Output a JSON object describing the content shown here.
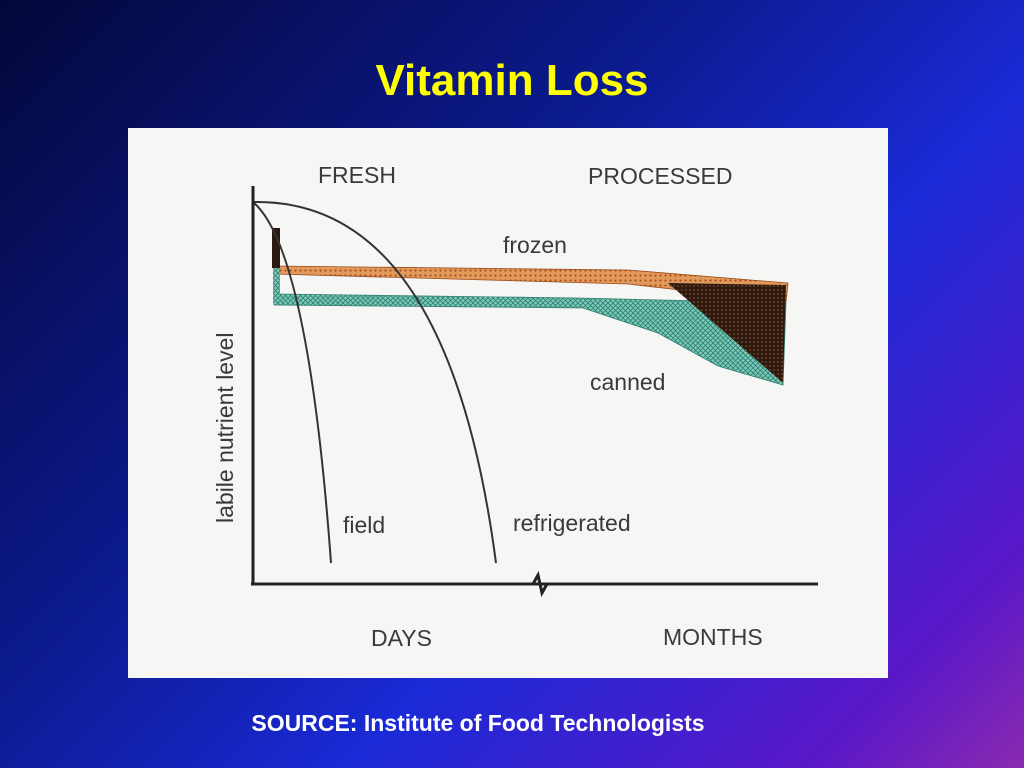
{
  "slide": {
    "title": "Vitamin Loss",
    "source": "SOURCE: Institute of Food Technologists"
  },
  "chart_data": {
    "type": "line",
    "title": "",
    "ylabel": "labile nutrient level",
    "x_segments": [
      "DAYS",
      "MONTHS"
    ],
    "regions": [
      "FRESH",
      "PROCESSED"
    ],
    "axis_break": true,
    "grid": false,
    "series": [
      {
        "name": "field",
        "kind": "curve",
        "color": "#333333"
      },
      {
        "name": "refrigerated",
        "kind": "curve",
        "color": "#333333"
      },
      {
        "name": "frozen",
        "kind": "band",
        "color": "#d9823f",
        "dark_fill": "#2a1a12"
      },
      {
        "name": "canned",
        "kind": "band",
        "color": "#6cbfae",
        "dark_fill": "#2a1a12"
      }
    ]
  },
  "colors": {
    "title": "#ffff00",
    "source": "#ffffff",
    "panel": "#f6f6f4",
    "frozen": "#d9823f",
    "canned": "#6cbfae",
    "overlap": "#2a1a12",
    "ink": "#333333"
  }
}
